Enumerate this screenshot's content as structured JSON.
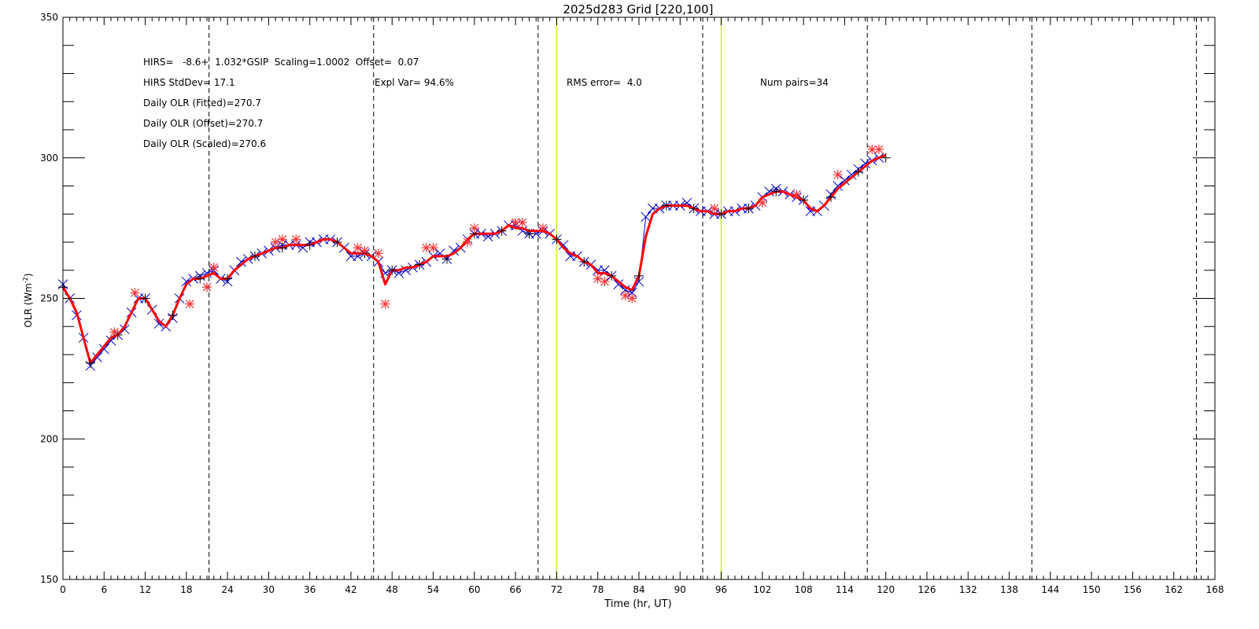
{
  "chart_data": {
    "type": "line",
    "title": "2025d283 Grid [220,100]",
    "xlabel": "Time (hr, UT)",
    "ylabel": "OLR (Wm",
    "ylabel_sup": "-2",
    "ylabel_close": ")",
    "xlim": [
      0,
      168
    ],
    "ylim": [
      150,
      350
    ],
    "xticks": [
      0,
      6,
      12,
      18,
      24,
      30,
      36,
      42,
      48,
      54,
      60,
      66,
      72,
      78,
      84,
      90,
      96,
      102,
      108,
      114,
      120,
      126,
      132,
      138,
      144,
      150,
      156,
      162,
      168
    ],
    "yticks_labeled": [
      150,
      200,
      250,
      300,
      350
    ],
    "dashed_vlines_x": [
      21.3,
      45.3,
      69.3,
      93.3,
      117.3,
      141.3,
      165.3
    ],
    "yellow_vlines_x": [
      72,
      96
    ],
    "annotations": {
      "line1": "HIRS=   -8.6+  1.032*GSIP  Scaling=1.0002  Offset=  0.07",
      "line2a": "HIRS StdDev= 17.1",
      "line2b": "Expl Var= 94.6%",
      "line2c": "RMS error=  4.0",
      "line2d": "Num pairs=34",
      "line3": "Daily OLR (Fitted)=270.7",
      "line4": "Daily OLR (Offset)=270.7",
      "line5": "Daily OLR (Scaled)=270.6"
    },
    "series": [
      {
        "color": "#ff0000",
        "marker": "line",
        "x": [
          0,
          1,
          2,
          3,
          4,
          5,
          6,
          7,
          8,
          9,
          10,
          11,
          12,
          13,
          14,
          15,
          16,
          17,
          18,
          19,
          20,
          21,
          22,
          23,
          24,
          25,
          26,
          27,
          28,
          29,
          30,
          31,
          32,
          33,
          34,
          35,
          36,
          37,
          38,
          39,
          40,
          41,
          42,
          43,
          44,
          45,
          46,
          47,
          48,
          49,
          50,
          51,
          52,
          53,
          54,
          55,
          56,
          57,
          58,
          59,
          60,
          61,
          62,
          63,
          64,
          65,
          66,
          67,
          68,
          69,
          70,
          71,
          72,
          73,
          74,
          75,
          76,
          77,
          78,
          79,
          80,
          81,
          82,
          83,
          84,
          85,
          86,
          87,
          88,
          89,
          90,
          91,
          92,
          93,
          94,
          95,
          96,
          97,
          98,
          99,
          100,
          101,
          102,
          103,
          104,
          105,
          106,
          107,
          108,
          109,
          110,
          111,
          112,
          113,
          114,
          115,
          116,
          117,
          118,
          119,
          120
        ],
        "y": [
          254,
          250,
          245,
          236,
          227,
          230,
          233,
          236,
          237,
          240,
          245,
          250,
          250,
          246,
          242,
          240,
          244,
          250,
          255,
          257,
          257,
          258,
          259,
          257,
          257,
          260,
          262,
          264,
          265,
          266,
          267,
          268,
          268,
          269,
          269,
          269,
          269,
          270,
          271,
          271,
          270,
          268,
          266,
          266,
          266,
          265,
          263,
          255,
          260,
          260,
          261,
          261,
          262,
          263,
          265,
          265,
          265,
          266,
          268,
          271,
          273,
          273,
          273,
          273,
          274,
          276,
          275,
          275,
          274,
          274,
          274,
          273,
          271,
          268,
          266,
          265,
          263,
          262,
          259,
          259,
          258,
          256,
          254,
          253,
          258,
          272,
          280,
          282,
          283,
          283,
          283,
          283,
          282,
          281,
          281,
          280,
          280,
          281,
          281,
          282,
          282,
          283,
          286,
          287,
          288,
          288,
          287,
          286,
          285,
          282,
          281,
          283,
          286,
          289,
          291,
          293,
          295,
          297,
          299,
          300,
          301
        ]
      },
      {
        "color": "#0000cc",
        "marker": "x",
        "x": [
          0,
          1,
          2,
          3,
          4,
          5,
          6,
          7,
          8,
          9,
          10,
          11,
          12,
          13,
          14,
          15,
          16,
          17,
          18,
          19,
          20,
          21,
          22,
          23,
          24,
          25,
          26,
          27,
          28,
          29,
          30,
          31,
          32,
          33,
          34,
          35,
          36,
          37,
          38,
          39,
          40,
          41,
          42,
          43,
          44,
          45,
          46,
          47,
          48,
          49,
          50,
          51,
          52,
          53,
          54,
          55,
          56,
          57,
          58,
          59,
          60,
          61,
          62,
          63,
          64,
          65,
          66,
          67,
          68,
          69,
          70,
          71,
          72,
          73,
          74,
          75,
          76,
          77,
          78,
          79,
          80,
          81,
          82,
          83,
          84,
          85,
          86,
          87,
          88,
          89,
          90,
          91,
          92,
          93,
          94,
          95,
          96,
          97,
          98,
          99,
          100,
          101,
          102,
          103,
          104,
          105,
          106,
          107,
          108,
          109,
          110,
          111,
          112,
          113,
          114,
          115,
          116,
          117,
          118,
          119
        ],
        "y": [
          255,
          250,
          244,
          236,
          226,
          229,
          232,
          235,
          237,
          239,
          245,
          250,
          250,
          246,
          241,
          240,
          243,
          250,
          256,
          257,
          258,
          259,
          260,
          257,
          256,
          260,
          263,
          264,
          265,
          266,
          267,
          268,
          269,
          269,
          269,
          268,
          270,
          270,
          271,
          271,
          270,
          268,
          265,
          265,
          266,
          265,
          263,
          259,
          260,
          259,
          260,
          261,
          262,
          263,
          265,
          266,
          264,
          267,
          268,
          271,
          273,
          273,
          272,
          273,
          274,
          276,
          276,
          274,
          273,
          273,
          274,
          273,
          271,
          269,
          265,
          265,
          263,
          262,
          260,
          260,
          258,
          255,
          253,
          252,
          256,
          279,
          282,
          282,
          283,
          283,
          283,
          284,
          282,
          281,
          281,
          280,
          280,
          281,
          281,
          282,
          282,
          283,
          286,
          288,
          289,
          288,
          287,
          286,
          285,
          281,
          281,
          283,
          287,
          290,
          292,
          294,
          296,
          298,
          299,
          300
        ]
      },
      {
        "color": "#000000",
        "marker": "+",
        "x": [
          0,
          4,
          8,
          12,
          16,
          20,
          24,
          28,
          32,
          36,
          40,
          44,
          48,
          52,
          56,
          60,
          64,
          68,
          72,
          76,
          80,
          84,
          88,
          92,
          96,
          100,
          104,
          108,
          112,
          116,
          120
        ],
        "y": [
          254,
          227,
          237,
          250,
          244,
          257,
          257,
          265,
          268,
          269,
          270,
          266,
          260,
          262,
          264,
          273,
          274,
          273,
          271,
          263,
          258,
          258,
          283,
          282,
          280,
          282,
          288,
          285,
          286,
          295,
          300
        ]
      },
      {
        "color": "#ff3333",
        "marker": "*",
        "x": [
          7.5,
          10.5,
          18.5,
          21,
          22,
          31,
          32,
          34,
          43,
          44,
          46,
          47,
          53,
          54,
          59,
          60,
          66,
          67,
          70,
          78,
          79,
          82,
          83,
          95,
          102,
          107,
          113,
          118,
          119
        ],
        "y": [
          238,
          252,
          248,
          254,
          261,
          270,
          271,
          271,
          268,
          267,
          266,
          248,
          268,
          268,
          270,
          275,
          277,
          277,
          275,
          257,
          256,
          251,
          250,
          282,
          284,
          287,
          294,
          303,
          303
        ]
      }
    ]
  }
}
